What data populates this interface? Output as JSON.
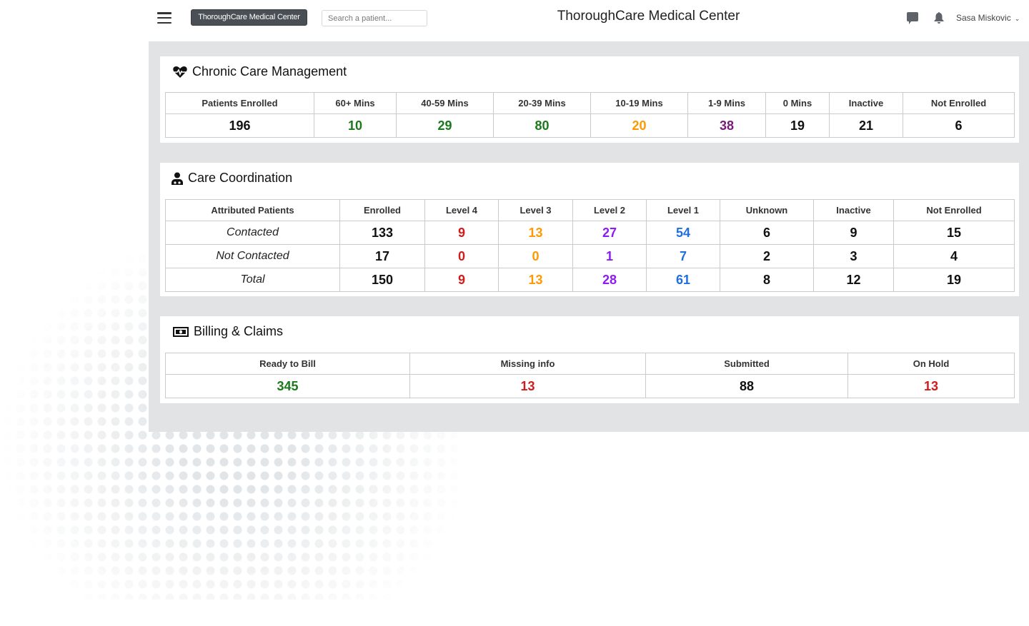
{
  "header": {
    "brand": "ThoroughCare Medical Center",
    "search_placeholder": "Search a patient...",
    "title": "ThoroughCare Medical Center",
    "user": "Sasa Miskovic",
    "icons": [
      "menu-icon",
      "chat-icon",
      "bell-icon",
      "chevron-down-icon"
    ]
  },
  "colors": {
    "green": "#1a7a1a",
    "orange": "#ff9900",
    "purple": "#7a1a7a",
    "red": "#d01c1c",
    "violet": "#8c1cf0",
    "blue": "#1f6fe0",
    "black": "#111111"
  },
  "ccm": {
    "title": "Chronic Care Management",
    "icon": "heartbeat-icon",
    "headers": [
      "Patients Enrolled",
      "60+ Mins",
      "40-59 Mins",
      "20-39 Mins",
      "10-19 Mins",
      "1-9 Mins",
      "0 Mins",
      "Inactive",
      "Not Enrolled"
    ],
    "values": [
      "196",
      "10",
      "29",
      "80",
      "20",
      "38",
      "19",
      "21",
      "6"
    ],
    "value_colors": [
      "black",
      "green",
      "green",
      "green",
      "orange",
      "purple",
      "black",
      "black",
      "black"
    ]
  },
  "cc": {
    "title": "Care Coordination",
    "icon": "user-doctor-icon",
    "headers": [
      "Attributed Patients",
      "Enrolled",
      "Level 4",
      "Level 3",
      "Level 2",
      "Level 1",
      "Unknown",
      "Inactive",
      "Not Enrolled"
    ],
    "rows": [
      {
        "label": "Contacted",
        "values": [
          "133",
          "9",
          "13",
          "27",
          "54",
          "6",
          "9",
          "15"
        ]
      },
      {
        "label": "Not Contacted",
        "values": [
          "17",
          "0",
          "0",
          "1",
          "7",
          "2",
          "3",
          "4"
        ]
      },
      {
        "label": "Total",
        "values": [
          "150",
          "9",
          "13",
          "28",
          "61",
          "8",
          "12",
          "19"
        ]
      }
    ],
    "value_colors": [
      "black",
      "red",
      "orange",
      "violet",
      "blue",
      "black",
      "black",
      "black"
    ]
  },
  "bc": {
    "title": "Billing & Claims",
    "icon": "money-bill-icon",
    "headers": [
      "Ready to Bill",
      "Missing info",
      "Submitted",
      "On Hold"
    ],
    "values": [
      "345",
      "13",
      "88",
      "13"
    ],
    "value_colors": [
      "green",
      "red",
      "black",
      "red"
    ]
  }
}
